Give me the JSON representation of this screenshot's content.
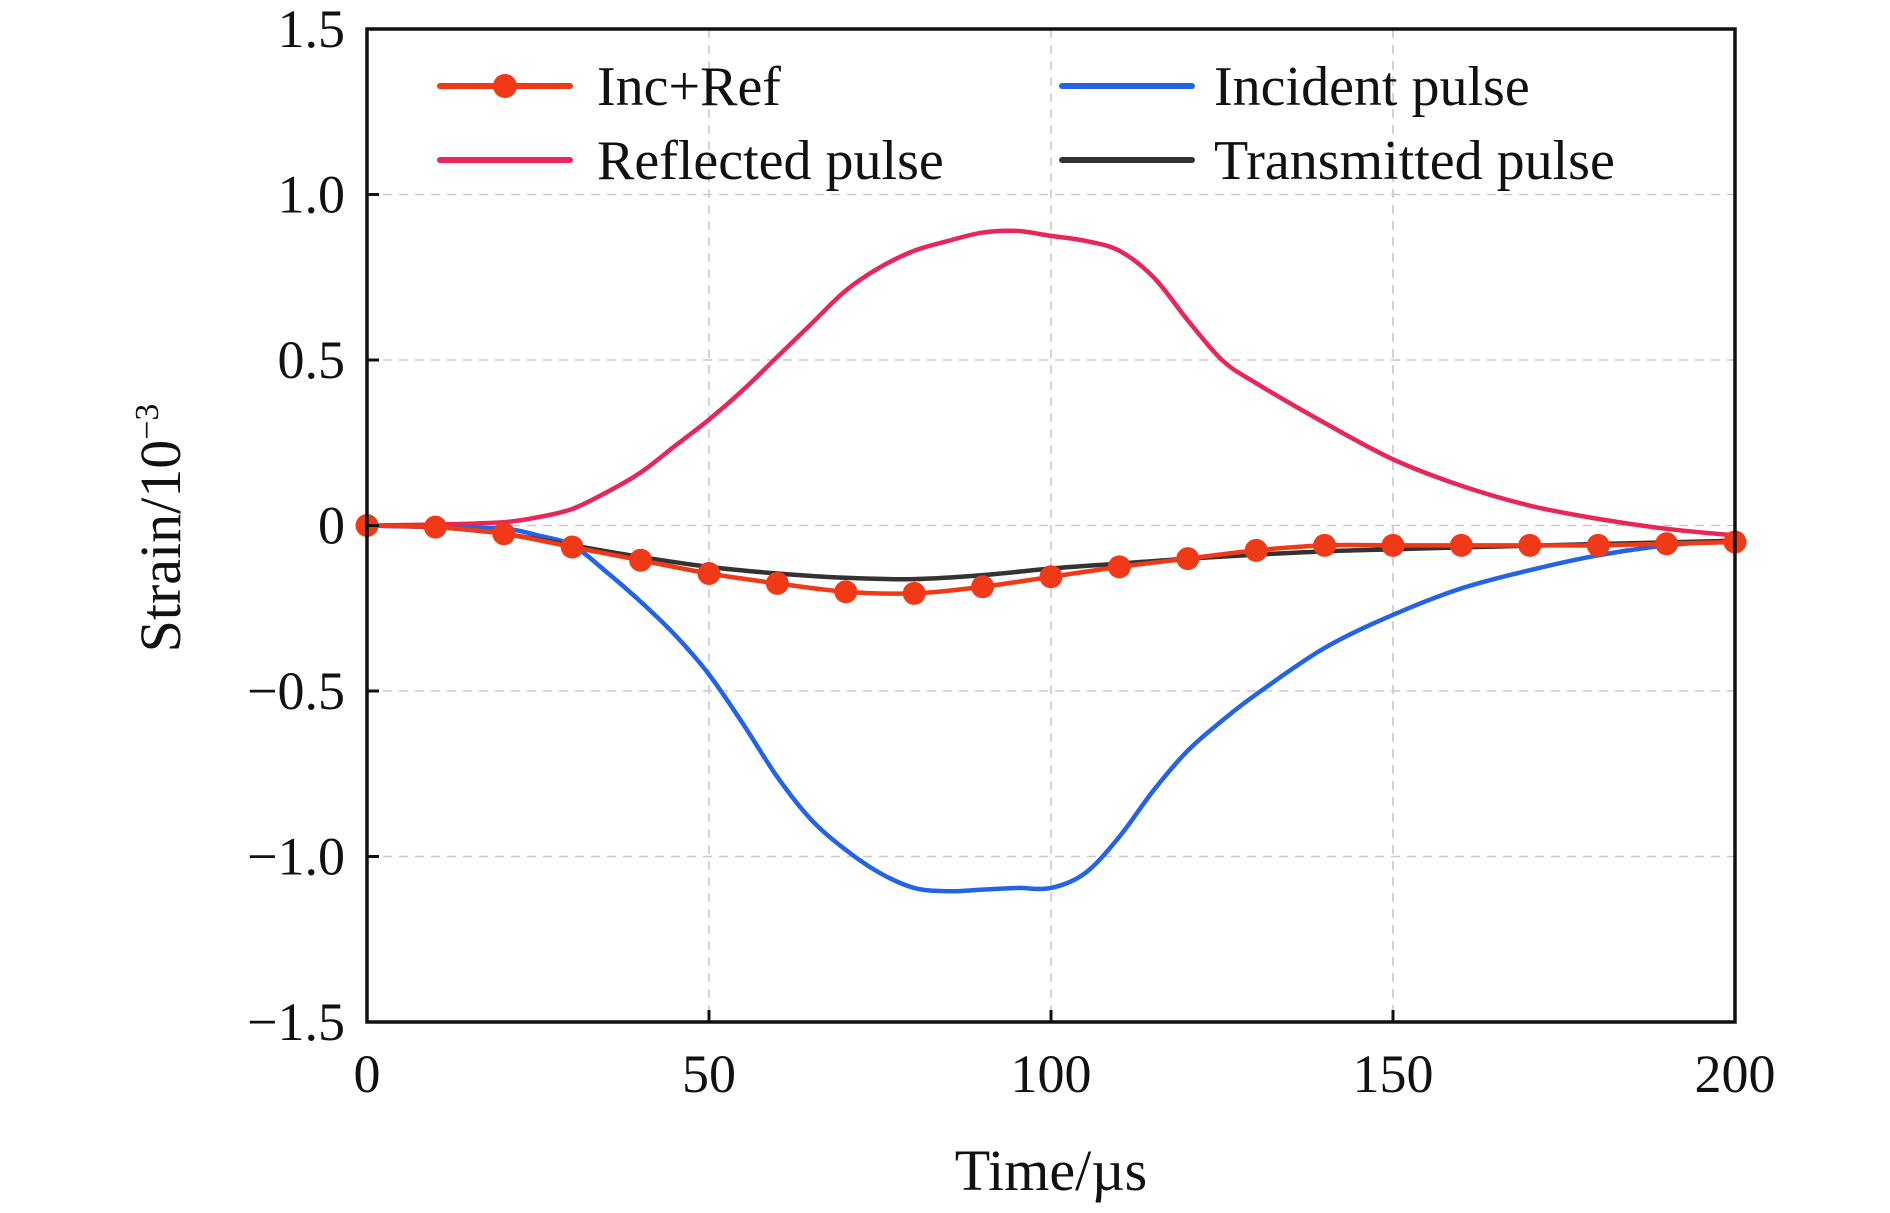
{
  "chart_data": {
    "type": "line",
    "xlabel": "Time/µs",
    "ylabel_main": "Strain/10",
    "ylabel_exp": "−3",
    "xlim": [
      0,
      200
    ],
    "ylim": [
      -1.5,
      1.5
    ],
    "xticks": [
      0,
      50,
      100,
      150,
      200
    ],
    "xtick_labels": [
      "0",
      "50",
      "100",
      "150",
      "200"
    ],
    "yticks": [
      -1.5,
      -1.0,
      -0.5,
      0,
      0.5,
      1.0,
      1.5
    ],
    "ytick_labels": [
      "−1.5",
      "−1.0",
      "−0.5",
      "0",
      "0.5",
      "1.0",
      "1.5"
    ],
    "grid": true,
    "legend_position": "top",
    "series": [
      {
        "name": "Inc+Ref",
        "color": "#f03a17",
        "marker": "circle",
        "x": [
          0,
          10,
          20,
          30,
          40,
          50,
          60,
          70,
          80,
          90,
          100,
          110,
          120,
          130,
          140,
          150,
          160,
          170,
          180,
          190,
          200
        ],
        "y": [
          0,
          -0.005,
          -0.025,
          -0.065,
          -0.105,
          -0.145,
          -0.175,
          -0.2,
          -0.205,
          -0.185,
          -0.155,
          -0.125,
          -0.1,
          -0.075,
          -0.06,
          -0.06,
          -0.06,
          -0.06,
          -0.06,
          -0.055,
          -0.05
        ]
      },
      {
        "name": "Incident pulse",
        "color": "#2563e6",
        "x": [
          0,
          10,
          20,
          25,
          30,
          35,
          40,
          45,
          50,
          55,
          60,
          65,
          70,
          75,
          80,
          85,
          90,
          95,
          100,
          105,
          110,
          115,
          120,
          125,
          130,
          140,
          150,
          160,
          170,
          180,
          190,
          200
        ],
        "y": [
          0,
          -0.005,
          -0.01,
          -0.03,
          -0.06,
          -0.14,
          -0.23,
          -0.33,
          -0.45,
          -0.6,
          -0.76,
          -0.89,
          -0.98,
          -1.05,
          -1.095,
          -1.105,
          -1.1,
          -1.095,
          -1.095,
          -1.05,
          -0.94,
          -0.8,
          -0.68,
          -0.59,
          -0.51,
          -0.37,
          -0.27,
          -0.19,
          -0.135,
          -0.09,
          -0.06,
          -0.045
        ]
      },
      {
        "name": "Reflected pulse",
        "color": "#e8265a",
        "x": [
          0,
          10,
          20,
          25,
          30,
          35,
          40,
          45,
          50,
          55,
          60,
          65,
          70,
          75,
          80,
          85,
          90,
          95,
          100,
          105,
          110,
          115,
          120,
          125,
          130,
          140,
          150,
          160,
          170,
          180,
          190,
          200
        ],
        "y": [
          0,
          0.003,
          0.01,
          0.025,
          0.05,
          0.1,
          0.16,
          0.24,
          0.32,
          0.41,
          0.51,
          0.61,
          0.71,
          0.78,
          0.83,
          0.86,
          0.885,
          0.89,
          0.875,
          0.86,
          0.83,
          0.75,
          0.62,
          0.5,
          0.43,
          0.31,
          0.2,
          0.12,
          0.06,
          0.02,
          -0.01,
          -0.03
        ]
      },
      {
        "name": "Transmitted pulse",
        "color": "#333333",
        "x": [
          0,
          10,
          20,
          30,
          40,
          50,
          60,
          70,
          80,
          90,
          100,
          110,
          120,
          130,
          140,
          150,
          160,
          170,
          180,
          190,
          200
        ],
        "y": [
          0,
          -0.005,
          -0.025,
          -0.06,
          -0.095,
          -0.125,
          -0.145,
          -0.158,
          -0.162,
          -0.15,
          -0.13,
          -0.115,
          -0.1,
          -0.088,
          -0.078,
          -0.072,
          -0.066,
          -0.061,
          -0.056,
          -0.051,
          -0.046
        ]
      }
    ]
  }
}
